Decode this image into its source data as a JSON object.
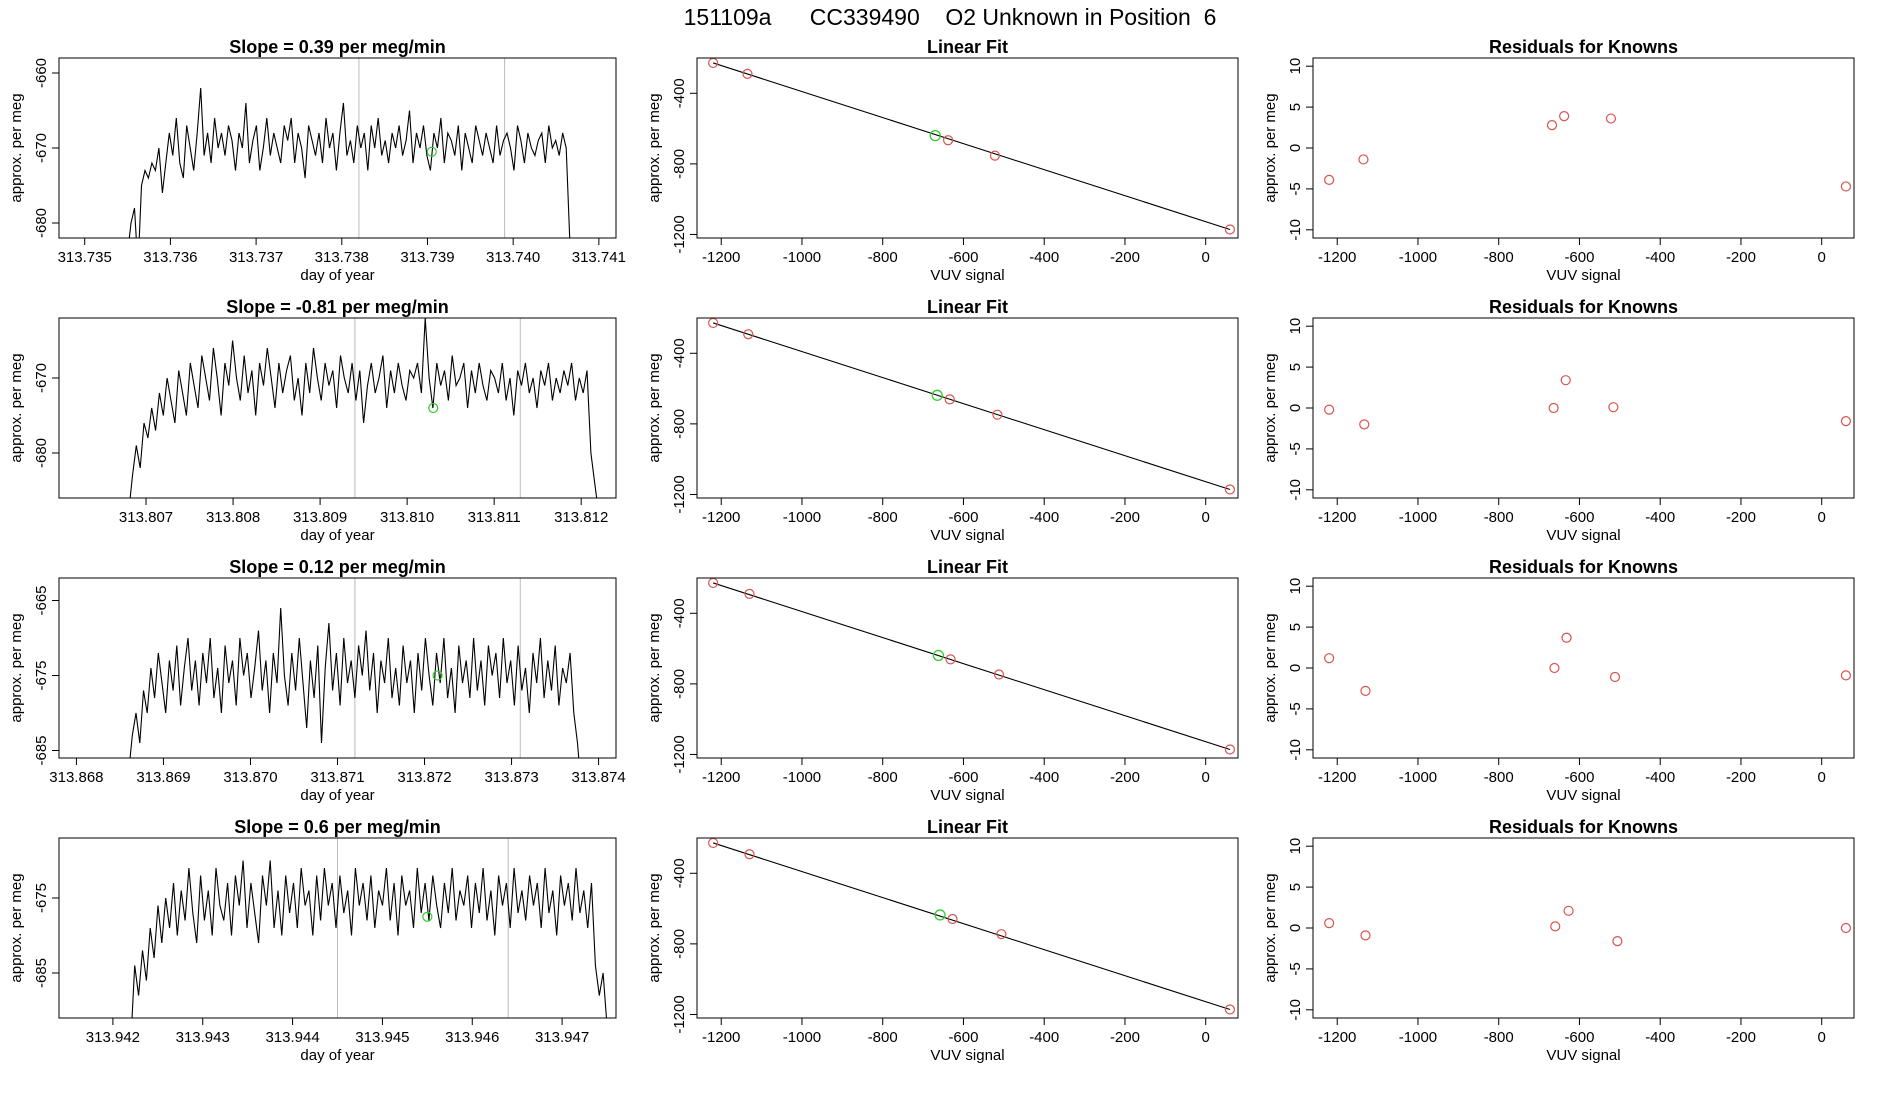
{
  "figure": {
    "title_parts": [
      "151109a",
      "CC339490",
      "O2 Unknown in Position",
      "6"
    ]
  },
  "colors": {
    "trace": "#000000",
    "known": "#d9534f",
    "unknown": "#33cc33",
    "vline": "#bbbbbb",
    "box": "#000000"
  },
  "chart_data": [
    {
      "type": "line",
      "row": 0,
      "title": "Slope =  0.39  per meg/min",
      "xlabel": "day of year",
      "ylabel": "approx. per meg",
      "xlim": [
        313.7347,
        313.7412
      ],
      "ylim": [
        -682,
        -658
      ],
      "xticks": [
        313.735,
        313.736,
        313.737,
        313.738,
        313.739,
        313.74,
        313.741
      ],
      "xtick_labels": [
        "313.735",
        "313.736",
        "313.737",
        "313.738",
        "313.739",
        "313.740",
        "313.741"
      ],
      "yticks": [
        -680,
        -670,
        -660
      ],
      "ytick_labels": [
        "-680",
        "-670",
        "-660"
      ],
      "vlines": [
        313.7382,
        313.7399
      ],
      "unknown_point": {
        "x": 313.73905,
        "y": -670.5
      },
      "x_start": 313.7355,
      "x_end": 313.7407,
      "y": [
        -684,
        -680,
        -678,
        -686,
        -675,
        -673,
        -674,
        -672,
        -673,
        -670,
        -676,
        -672,
        -668,
        -671,
        -666,
        -672,
        -674,
        -667,
        -670,
        -673,
        -668,
        -662,
        -671,
        -668,
        -672,
        -666,
        -670,
        -668,
        -671,
        -667,
        -669,
        -673,
        -668,
        -670,
        -664,
        -672,
        -669,
        -667,
        -673,
        -670,
        -666,
        -671,
        -668,
        -670,
        -672,
        -667,
        -669,
        -666,
        -672,
        -668,
        -670,
        -674,
        -667,
        -669,
        -671,
        -668,
        -672,
        -666,
        -670,
        -668,
        -673,
        -668,
        -664,
        -671,
        -669,
        -672,
        -667,
        -670,
        -668,
        -673,
        -667,
        -670,
        -666,
        -671,
        -669,
        -672,
        -668,
        -670,
        -667,
        -671,
        -669,
        -665,
        -672,
        -668,
        -670,
        -667,
        -671,
        -673,
        -668,
        -670,
        -666,
        -672,
        -668,
        -669,
        -671,
        -667,
        -673,
        -668,
        -670,
        -672,
        -667,
        -669,
        -671,
        -668,
        -670,
        -672,
        -667,
        -671,
        -669,
        -668,
        -670,
        -673,
        -667,
        -669,
        -672,
        -668,
        -670,
        -671,
        -669,
        -668,
        -672,
        -667,
        -670,
        -669,
        -671,
        -668,
        -670,
        -682,
        -686
      ]
    },
    {
      "type": "scatter",
      "row": 0,
      "title": "Linear Fit",
      "xlabel": "VUV signal",
      "ylabel": "approx. per meg",
      "xlim": [
        -1260,
        80
      ],
      "ylim": [
        -1220,
        -200
      ],
      "xticks": [
        -1200,
        -1000,
        -800,
        -600,
        -400,
        -200,
        0
      ],
      "xtick_labels": [
        "-1200",
        "-1000",
        "-800",
        "-600",
        "-400",
        "-200",
        "0"
      ],
      "yticks": [
        -1200,
        -800,
        -400
      ],
      "ytick_labels": [
        "-1200",
        "-800",
        "-400"
      ],
      "fit_line": {
        "x": [
          -1220,
          60
        ],
        "y": [
          -228,
          -1172
        ]
      },
      "knowns": [
        [
          -1220,
          -228
        ],
        [
          -1135,
          -290
        ],
        [
          -638,
          -666
        ],
        [
          -522,
          -753
        ],
        [
          60,
          -1172
        ]
      ],
      "unknown": [
        -670,
        -640
      ]
    },
    {
      "type": "scatter",
      "row": 0,
      "title": "Residuals for Knowns",
      "xlabel": "VUV signal",
      "ylabel": "approx. per meg",
      "xlim": [
        -1260,
        80
      ],
      "ylim": [
        -11,
        11
      ],
      "xticks": [
        -1200,
        -1000,
        -800,
        -600,
        -400,
        -200,
        0
      ],
      "xtick_labels": [
        "-1200",
        "-1000",
        "-800",
        "-600",
        "-400",
        "-200",
        "0"
      ],
      "yticks": [
        -10,
        -5,
        0,
        5,
        10
      ],
      "ytick_labels": [
        "-10",
        "-5",
        "0",
        "5",
        "10"
      ],
      "points": [
        [
          -1220,
          -3.9
        ],
        [
          -1135,
          -1.4
        ],
        [
          -668,
          2.8
        ],
        [
          -638,
          3.9
        ],
        [
          -522,
          3.6
        ],
        [
          60,
          -4.7
        ]
      ]
    },
    {
      "type": "line",
      "row": 1,
      "title": "Slope =  -0.81  per meg/min",
      "xlabel": "day of year",
      "ylabel": "approx. per meg",
      "xlim": [
        313.806,
        313.8124
      ],
      "ylim": [
        -686,
        -662
      ],
      "xticks": [
        313.807,
        313.808,
        313.809,
        313.81,
        313.811,
        313.812
      ],
      "xtick_labels": [
        "313.807",
        "313.808",
        "313.809",
        "313.810",
        "313.811",
        "313.812"
      ],
      "yticks": [
        -680,
        -670
      ],
      "ytick_labels": [
        "-680",
        "-670"
      ],
      "vlines": [
        313.8094,
        313.8113
      ],
      "unknown_point": {
        "x": 313.8103,
        "y": -674
      },
      "x_start": 313.8068,
      "x_end": 313.8122,
      "y": [
        -688,
        -683,
        -679,
        -682,
        -676,
        -678,
        -674,
        -677,
        -672,
        -675,
        -670,
        -673,
        -676,
        -669,
        -672,
        -675,
        -668,
        -671,
        -674,
        -667,
        -670,
        -673,
        -666,
        -670,
        -675,
        -668,
        -671,
        -665,
        -670,
        -673,
        -667,
        -672,
        -669,
        -675,
        -668,
        -671,
        -666,
        -670,
        -674,
        -668,
        -672,
        -669,
        -667,
        -673,
        -670,
        -675,
        -668,
        -672,
        -666,
        -670,
        -673,
        -668,
        -671,
        -669,
        -674,
        -667,
        -670,
        -672,
        -668,
        -673,
        -669,
        -676,
        -671,
        -668,
        -672,
        -670,
        -667,
        -674,
        -669,
        -672,
        -668,
        -671,
        -673,
        -669,
        -670,
        -668,
        -672,
        -662,
        -670,
        -674,
        -668,
        -671,
        -669,
        -673,
        -667,
        -671,
        -670,
        -668,
        -674,
        -669,
        -672,
        -668,
        -671,
        -673,
        -669,
        -670,
        -672,
        -668,
        -673,
        -670,
        -675,
        -669,
        -671,
        -668,
        -672,
        -670,
        -674,
        -669,
        -671,
        -668,
        -673,
        -670,
        -672,
        -669,
        -671,
        -668,
        -673,
        -670,
        -672,
        -669,
        -680,
        -684,
        -688
      ]
    },
    {
      "type": "scatter",
      "row": 1,
      "title": "Linear Fit",
      "xlabel": "VUV signal",
      "ylabel": "approx. per meg",
      "xlim": [
        -1260,
        80
      ],
      "ylim": [
        -1220,
        -200
      ],
      "xticks": [
        -1200,
        -1000,
        -800,
        -600,
        -400,
        -200,
        0
      ],
      "xtick_labels": [
        "-1200",
        "-1000",
        "-800",
        "-600",
        "-400",
        "-200",
        "0"
      ],
      "yticks": [
        -1200,
        -800,
        -400
      ],
      "ytick_labels": [
        "-1200",
        "-800",
        "-400"
      ],
      "fit_line": {
        "x": [
          -1220,
          60
        ],
        "y": [
          -228,
          -1172
        ]
      },
      "knowns": [
        [
          -1220,
          -228
        ],
        [
          -1133,
          -292
        ],
        [
          -634,
          -661
        ],
        [
          -516,
          -748
        ],
        [
          60,
          -1172
        ]
      ],
      "unknown": [
        -665,
        -638
      ]
    },
    {
      "type": "scatter",
      "row": 1,
      "title": "Residuals for Knowns",
      "xlabel": "VUV signal",
      "ylabel": "approx. per meg",
      "xlim": [
        -1260,
        80
      ],
      "ylim": [
        -11,
        11
      ],
      "xticks": [
        -1200,
        -1000,
        -800,
        -600,
        -400,
        -200,
        0
      ],
      "xtick_labels": [
        "-1200",
        "-1000",
        "-800",
        "-600",
        "-400",
        "-200",
        "0"
      ],
      "yticks": [
        -10,
        -5,
        0,
        5,
        10
      ],
      "ytick_labels": [
        "-10",
        "-5",
        "0",
        "5",
        "10"
      ],
      "points": [
        [
          -1220,
          -0.2
        ],
        [
          -1133,
          -2.0
        ],
        [
          -664,
          0.0
        ],
        [
          -634,
          3.4
        ],
        [
          -516,
          0.1
        ],
        [
          60,
          -1.6
        ]
      ]
    },
    {
      "type": "line",
      "row": 2,
      "title": "Slope =  0.12  per meg/min",
      "xlabel": "day of year",
      "ylabel": "approx. per meg",
      "xlim": [
        313.8678,
        313.8742
      ],
      "ylim": [
        -686,
        -662
      ],
      "xticks": [
        313.868,
        313.869,
        313.87,
        313.871,
        313.872,
        313.873,
        313.874
      ],
      "xtick_labels": [
        "313.868",
        "313.869",
        "313.870",
        "313.871",
        "313.872",
        "313.873",
        "313.874"
      ],
      "yticks": [
        -685,
        -675,
        -665
      ],
      "ytick_labels": [
        "-685",
        "-675",
        "-665"
      ],
      "vlines": [
        313.8712,
        313.8731
      ],
      "unknown_point": {
        "x": 313.87215,
        "y": -675
      },
      "x_start": 313.8686,
      "x_end": 313.8738,
      "y": [
        -688,
        -683,
        -680,
        -684,
        -677,
        -680,
        -674,
        -678,
        -672,
        -676,
        -680,
        -673,
        -677,
        -671,
        -679,
        -674,
        -670,
        -677,
        -673,
        -679,
        -672,
        -676,
        -670,
        -678,
        -674,
        -680,
        -671,
        -676,
        -673,
        -679,
        -670,
        -675,
        -672,
        -678,
        -674,
        -669,
        -677,
        -673,
        -680,
        -672,
        -676,
        -666,
        -675,
        -679,
        -672,
        -677,
        -670,
        -676,
        -682,
        -673,
        -678,
        -671,
        -684,
        -674,
        -668,
        -677,
        -672,
        -679,
        -670,
        -676,
        -673,
        -678,
        -671,
        -675,
        -669,
        -677,
        -672,
        -680,
        -673,
        -676,
        -670,
        -678,
        -674,
        -679,
        -671,
        -676,
        -673,
        -680,
        -672,
        -677,
        -670,
        -675,
        -679,
        -672,
        -676,
        -670,
        -678,
        -674,
        -680,
        -671,
        -676,
        -673,
        -678,
        -670,
        -677,
        -673,
        -679,
        -671,
        -675,
        -672,
        -678,
        -670,
        -676,
        -673,
        -679,
        -671,
        -677,
        -674,
        -680,
        -672,
        -676,
        -670,
        -678,
        -673,
        -677,
        -671,
        -679,
        -674,
        -676,
        -672,
        -680,
        -684,
        -690
      ]
    },
    {
      "type": "scatter",
      "row": 2,
      "title": "Linear Fit",
      "xlabel": "VUV signal",
      "ylabel": "approx. per meg",
      "xlim": [
        -1260,
        80
      ],
      "ylim": [
        -1220,
        -200
      ],
      "xticks": [
        -1200,
        -1000,
        -800,
        -600,
        -400,
        -200,
        0
      ],
      "xtick_labels": [
        "-1200",
        "-1000",
        "-800",
        "-600",
        "-400",
        "-200",
        "0"
      ],
      "yticks": [
        -1200,
        -800,
        -400
      ],
      "ytick_labels": [
        "-1200",
        "-800",
        "-400"
      ],
      "fit_line": {
        "x": [
          -1220,
          60
        ],
        "y": [
          -228,
          -1172
        ]
      },
      "knowns": [
        [
          -1220,
          -228
        ],
        [
          -1130,
          -290
        ],
        [
          -632,
          -661
        ],
        [
          -512,
          -747
        ],
        [
          60,
          -1172
        ]
      ],
      "unknown": [
        -662,
        -639
      ]
    },
    {
      "type": "scatter",
      "row": 2,
      "title": "Residuals for Knowns",
      "xlabel": "VUV signal",
      "ylabel": "approx. per meg",
      "xlim": [
        -1260,
        80
      ],
      "ylim": [
        -11,
        11
      ],
      "xticks": [
        -1200,
        -1000,
        -800,
        -600,
        -400,
        -200,
        0
      ],
      "xtick_labels": [
        "-1200",
        "-1000",
        "-800",
        "-600",
        "-400",
        "-200",
        "0"
      ],
      "yticks": [
        -10,
        -5,
        0,
        5,
        10
      ],
      "ytick_labels": [
        "-10",
        "-5",
        "0",
        "5",
        "10"
      ],
      "points": [
        [
          -1220,
          1.2
        ],
        [
          -1130,
          -2.8
        ],
        [
          -662,
          0.0
        ],
        [
          -632,
          3.7
        ],
        [
          -512,
          -1.1
        ],
        [
          60,
          -0.9
        ]
      ]
    },
    {
      "type": "line",
      "row": 3,
      "title": "Slope =  0.6  per meg/min",
      "xlabel": "day of year",
      "ylabel": "approx. per meg",
      "xlim": [
        313.9414,
        313.9476
      ],
      "ylim": [
        -691,
        -667
      ],
      "xticks": [
        313.942,
        313.943,
        313.944,
        313.945,
        313.946,
        313.947
      ],
      "xtick_labels": [
        "313.942",
        "313.943",
        "313.944",
        "313.945",
        "313.946",
        "313.947"
      ],
      "yticks": [
        -685,
        -675
      ],
      "ytick_labels": [
        "-685",
        "-675"
      ],
      "vlines": [
        313.9445,
        313.9464
      ],
      "unknown_point": {
        "x": 313.9455,
        "y": -677.5
      },
      "x_start": 313.9422,
      "x_end": 313.9475,
      "y": [
        -694,
        -684,
        -688,
        -682,
        -686,
        -679,
        -683,
        -676,
        -681,
        -675,
        -679,
        -673,
        -680,
        -674,
        -678,
        -671,
        -677,
        -681,
        -672,
        -678,
        -674,
        -680,
        -671,
        -676,
        -678,
        -673,
        -680,
        -672,
        -676,
        -670,
        -679,
        -673,
        -677,
        -681,
        -672,
        -676,
        -670,
        -679,
        -674,
        -680,
        -672,
        -677,
        -673,
        -679,
        -671,
        -676,
        -674,
        -680,
        -672,
        -678,
        -671,
        -676,
        -673,
        -679,
        -672,
        -677,
        -674,
        -680,
        -671,
        -676,
        -673,
        -678,
        -672,
        -679,
        -674,
        -676,
        -671,
        -678,
        -673,
        -680,
        -672,
        -676,
        -674,
        -679,
        -671,
        -677,
        -673,
        -678,
        -672,
        -676,
        -679,
        -673,
        -677,
        -671,
        -678,
        -674,
        -676,
        -672,
        -679,
        -673,
        -677,
        -671,
        -678,
        -674,
        -680,
        -672,
        -676,
        -673,
        -679,
        -671,
        -677,
        -674,
        -678,
        -672,
        -676,
        -673,
        -679,
        -671,
        -677,
        -674,
        -680,
        -672,
        -676,
        -673,
        -678,
        -671,
        -677,
        -674,
        -679,
        -673,
        -684,
        -688,
        -685,
        -692
      ]
    },
    {
      "type": "scatter",
      "row": 3,
      "title": "Linear Fit",
      "xlabel": "VUV signal",
      "ylabel": "approx. per meg",
      "xlim": [
        -1260,
        80
      ],
      "ylim": [
        -1220,
        -200
      ],
      "xticks": [
        -1200,
        -1000,
        -800,
        -600,
        -400,
        -200,
        0
      ],
      "xtick_labels": [
        "-1200",
        "-1000",
        "-800",
        "-600",
        "-400",
        "-200",
        "0"
      ],
      "yticks": [
        -1200,
        -800,
        -400
      ],
      "ytick_labels": [
        "-1200",
        "-800",
        "-400"
      ],
      "fit_line": {
        "x": [
          -1220,
          60
        ],
        "y": [
          -228,
          -1172
        ]
      },
      "knowns": [
        [
          -1220,
          -228
        ],
        [
          -1130,
          -292
        ],
        [
          -627,
          -659
        ],
        [
          -506,
          -745
        ],
        [
          60,
          -1172
        ]
      ],
      "unknown": [
        -658,
        -636
      ]
    },
    {
      "type": "scatter",
      "row": 3,
      "title": "Residuals for Knowns",
      "xlabel": "VUV signal",
      "ylabel": "approx. per meg",
      "xlim": [
        -1260,
        80
      ],
      "ylim": [
        -11,
        11
      ],
      "xticks": [
        -1200,
        -1000,
        -800,
        -600,
        -400,
        -200,
        0
      ],
      "xtick_labels": [
        "-1200",
        "-1000",
        "-800",
        "-600",
        "-400",
        "-200",
        "0"
      ],
      "yticks": [
        -10,
        -5,
        0,
        5,
        10
      ],
      "ytick_labels": [
        "-10",
        "-5",
        "0",
        "5",
        "10"
      ],
      "points": [
        [
          -1220,
          0.6
        ],
        [
          -1130,
          -0.9
        ],
        [
          -660,
          0.2
        ],
        [
          -627,
          2.1
        ],
        [
          -506,
          -1.6
        ],
        [
          60,
          0.0
        ]
      ]
    }
  ]
}
